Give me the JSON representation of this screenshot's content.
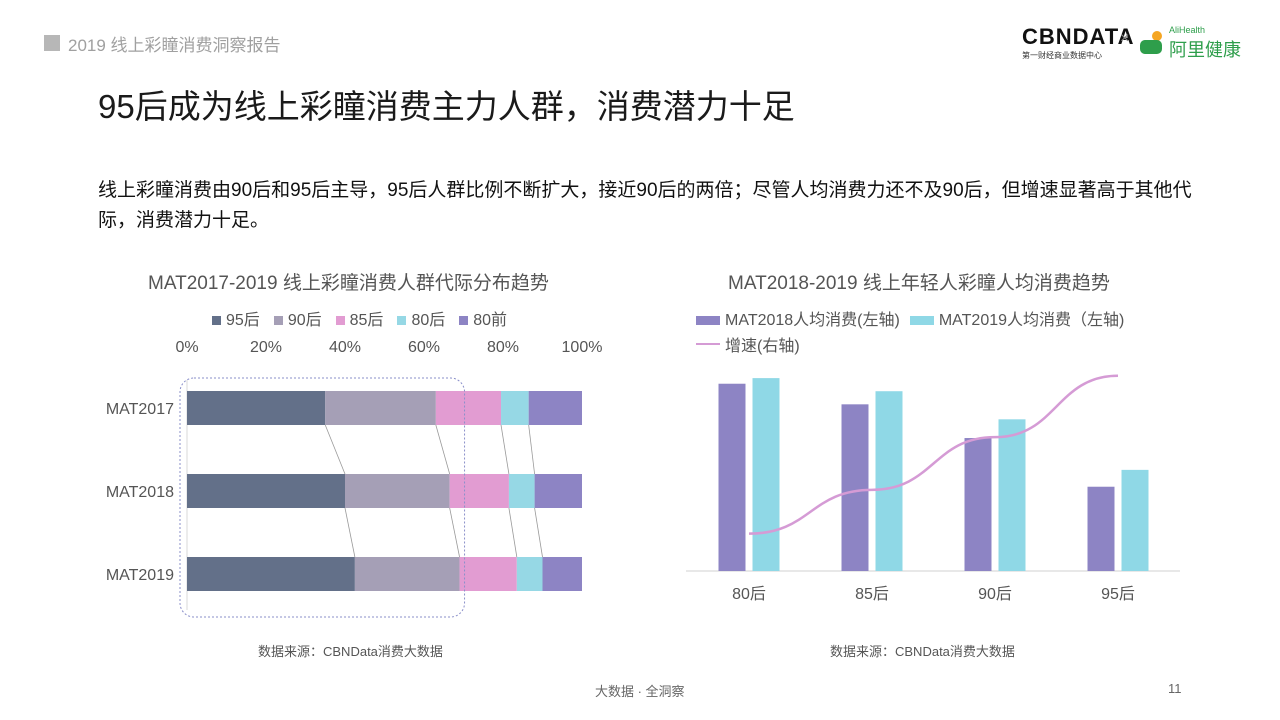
{
  "header": {
    "report_tag": "2019 线上彩瞳消费洞察报告",
    "logo_cbn": "CBNDATA",
    "logo_cbn_sub": "第一财经商业数据中心",
    "logo_times": "×",
    "logo_ali_en": "AliHealth",
    "logo_ali_cn": "阿里健康"
  },
  "title": "95后成为线上彩瞳消费主力人群，消费潜力十足",
  "summary": "线上彩瞳消费由90后和95后主导，95后人群比例不断扩大，接近90后的两倍；尽管人均消费力还不及90后，但增速显著高于其他代际，消费潜力十足。",
  "chart_data": [
    {
      "type": "bar",
      "orientation": "horizontal",
      "stacked": true,
      "percent": true,
      "title": "MAT2017-2019 线上彩瞳消费人群代际分布趋势",
      "categories": [
        "MAT2017",
        "MAT2018",
        "MAT2019"
      ],
      "x_ticks": [
        "0%",
        "20%",
        "40%",
        "60%",
        "80%",
        "100%"
      ],
      "xlim": [
        0,
        100
      ],
      "legend_position": "top",
      "series": [
        {
          "name": "95后",
          "color": "#637089",
          "values": [
            35,
            40,
            42.5
          ]
        },
        {
          "name": "90后",
          "color": "#a59fb6",
          "values": [
            28,
            26.5,
            26.5
          ]
        },
        {
          "name": "85后",
          "color": "#e29cd2",
          "values": [
            16.5,
            15,
            14.5
          ]
        },
        {
          "name": "80后",
          "color": "#96d8e5",
          "values": [
            7,
            6.5,
            6.5
          ]
        },
        {
          "name": "80前",
          "color": "#8d84c4",
          "values": [
            13.5,
            12,
            10
          ]
        }
      ],
      "source": "数据来源：CBNData消费大数据"
    },
    {
      "type": "bar",
      "secondary_type": "line",
      "title": "MAT2018-2019 线上年轻人彩瞳人均消费趋势",
      "categories": [
        "80后",
        "85后",
        "90后",
        "95后"
      ],
      "legend_position": "top",
      "series": [
        {
          "name": "MAT2018人均消费(左轴)",
          "color": "#8d84c4",
          "values": [
            100,
            89,
            71,
            45
          ]
        },
        {
          "name": "MAT2019人均消费（左轴)",
          "color": "#8fd8e6",
          "values": [
            103,
            96,
            81,
            54
          ]
        }
      ],
      "line_series": {
        "name": "增速(右轴)",
        "color": "#d59bd5",
        "values": [
          3,
          8,
          14,
          21
        ]
      },
      "note": "no axis tick labels shown; values are relative estimates",
      "source": "数据来源：CBNData消费大数据"
    }
  ],
  "footer": {
    "slogan": "大数据 · 全洞察",
    "page": "11"
  }
}
